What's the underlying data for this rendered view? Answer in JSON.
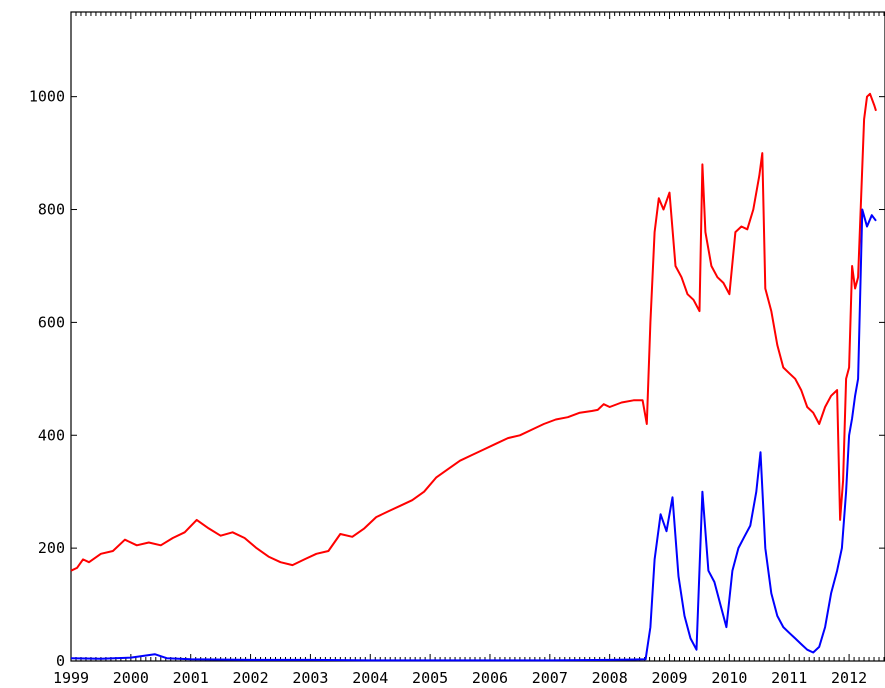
{
  "chart_data": {
    "type": "line",
    "title": "",
    "xlabel": "",
    "ylabel": "",
    "xlim": [
      1999.0,
      2012.6
    ],
    "ylim": [
      0,
      1150
    ],
    "grid": false,
    "legend": "none",
    "x_ticks": [
      "1999",
      "2000",
      "2001",
      "2002",
      "2003",
      "2004",
      "2005",
      "2006",
      "2007",
      "2008",
      "2009",
      "2010",
      "2011",
      "2012"
    ],
    "y_ticks": [
      "0",
      "200",
      "400",
      "600",
      "800",
      "1000"
    ],
    "y_tick_values": [
      0,
      200,
      400,
      600,
      800,
      1000
    ],
    "colors": {
      "series_1": "#ff0000",
      "series_2": "#0000ff"
    },
    "series": [
      {
        "color": "#ff0000",
        "points": [
          [
            1999.0,
            160
          ],
          [
            1999.1,
            165
          ],
          [
            1999.2,
            180
          ],
          [
            1999.3,
            175
          ],
          [
            1999.5,
            190
          ],
          [
            1999.7,
            195
          ],
          [
            1999.9,
            215
          ],
          [
            2000.1,
            205
          ],
          [
            2000.3,
            210
          ],
          [
            2000.5,
            205
          ],
          [
            2000.7,
            218
          ],
          [
            2000.9,
            228
          ],
          [
            2001.1,
            250
          ],
          [
            2001.3,
            235
          ],
          [
            2001.5,
            222
          ],
          [
            2001.7,
            228
          ],
          [
            2001.9,
            218
          ],
          [
            2002.1,
            200
          ],
          [
            2002.3,
            185
          ],
          [
            2002.5,
            175
          ],
          [
            2002.7,
            170
          ],
          [
            2002.9,
            180
          ],
          [
            2003.1,
            190
          ],
          [
            2003.3,
            195
          ],
          [
            2003.5,
            225
          ],
          [
            2003.7,
            220
          ],
          [
            2003.9,
            235
          ],
          [
            2004.1,
            255
          ],
          [
            2004.3,
            265
          ],
          [
            2004.5,
            275
          ],
          [
            2004.7,
            285
          ],
          [
            2004.9,
            300
          ],
          [
            2005.1,
            325
          ],
          [
            2005.3,
            340
          ],
          [
            2005.5,
            355
          ],
          [
            2005.7,
            365
          ],
          [
            2005.9,
            375
          ],
          [
            2006.1,
            385
          ],
          [
            2006.3,
            395
          ],
          [
            2006.5,
            400
          ],
          [
            2006.7,
            410
          ],
          [
            2006.9,
            420
          ],
          [
            2007.1,
            428
          ],
          [
            2007.3,
            432
          ],
          [
            2007.5,
            440
          ],
          [
            2007.7,
            443
          ],
          [
            2007.8,
            445
          ],
          [
            2007.9,
            455
          ],
          [
            2008.0,
            450
          ],
          [
            2008.2,
            458
          ],
          [
            2008.4,
            462
          ],
          [
            2008.55,
            462
          ],
          [
            2008.62,
            420
          ],
          [
            2008.68,
            600
          ],
          [
            2008.75,
            760
          ],
          [
            2008.82,
            820
          ],
          [
            2008.9,
            800
          ],
          [
            2009.0,
            830
          ],
          [
            2009.1,
            700
          ],
          [
            2009.2,
            680
          ],
          [
            2009.3,
            650
          ],
          [
            2009.4,
            640
          ],
          [
            2009.5,
            620
          ],
          [
            2009.55,
            880
          ],
          [
            2009.6,
            760
          ],
          [
            2009.7,
            700
          ],
          [
            2009.8,
            680
          ],
          [
            2009.9,
            670
          ],
          [
            2010.0,
            650
          ],
          [
            2010.1,
            760
          ],
          [
            2010.2,
            770
          ],
          [
            2010.3,
            765
          ],
          [
            2010.4,
            800
          ],
          [
            2010.5,
            860
          ],
          [
            2010.55,
            900
          ],
          [
            2010.6,
            660
          ],
          [
            2010.7,
            620
          ],
          [
            2010.8,
            560
          ],
          [
            2010.9,
            520
          ],
          [
            2011.0,
            510
          ],
          [
            2011.1,
            500
          ],
          [
            2011.2,
            480
          ],
          [
            2011.3,
            450
          ],
          [
            2011.4,
            440
          ],
          [
            2011.5,
            420
          ],
          [
            2011.6,
            450
          ],
          [
            2011.7,
            470
          ],
          [
            2011.8,
            480
          ],
          [
            2011.85,
            250
          ],
          [
            2011.9,
            320
          ],
          [
            2011.95,
            500
          ],
          [
            2012.0,
            520
          ],
          [
            2012.05,
            700
          ],
          [
            2012.1,
            660
          ],
          [
            2012.15,
            680
          ],
          [
            2012.2,
            820
          ],
          [
            2012.25,
            960
          ],
          [
            2012.3,
            1000
          ],
          [
            2012.35,
            1005
          ],
          [
            2012.42,
            985
          ],
          [
            2012.45,
            975
          ]
        ]
      },
      {
        "color": "#0000ff",
        "points": [
          [
            1999.0,
            5
          ],
          [
            1999.5,
            4
          ],
          [
            2000.0,
            6
          ],
          [
            2000.4,
            12
          ],
          [
            2000.6,
            5
          ],
          [
            2001.0,
            3
          ],
          [
            2002.0,
            2
          ],
          [
            2003.0,
            2
          ],
          [
            2004.0,
            1
          ],
          [
            2005.0,
            1
          ],
          [
            2006.0,
            1
          ],
          [
            2007.0,
            1
          ],
          [
            2008.0,
            2
          ],
          [
            2008.6,
            3
          ],
          [
            2008.68,
            60
          ],
          [
            2008.75,
            180
          ],
          [
            2008.85,
            260
          ],
          [
            2008.95,
            230
          ],
          [
            2009.05,
            290
          ],
          [
            2009.15,
            150
          ],
          [
            2009.25,
            80
          ],
          [
            2009.35,
            40
          ],
          [
            2009.45,
            20
          ],
          [
            2009.55,
            300
          ],
          [
            2009.65,
            160
          ],
          [
            2009.75,
            140
          ],
          [
            2009.85,
            100
          ],
          [
            2009.95,
            60
          ],
          [
            2010.05,
            160
          ],
          [
            2010.15,
            200
          ],
          [
            2010.25,
            220
          ],
          [
            2010.35,
            240
          ],
          [
            2010.45,
            300
          ],
          [
            2010.52,
            370
          ],
          [
            2010.6,
            200
          ],
          [
            2010.7,
            120
          ],
          [
            2010.8,
            80
          ],
          [
            2010.9,
            60
          ],
          [
            2011.0,
            50
          ],
          [
            2011.1,
            40
          ],
          [
            2011.2,
            30
          ],
          [
            2011.3,
            20
          ],
          [
            2011.4,
            15
          ],
          [
            2011.5,
            25
          ],
          [
            2011.6,
            60
          ],
          [
            2011.7,
            120
          ],
          [
            2011.8,
            160
          ],
          [
            2011.88,
            200
          ],
          [
            2011.95,
            300
          ],
          [
            2012.0,
            400
          ],
          [
            2012.05,
            430
          ],
          [
            2012.1,
            470
          ],
          [
            2012.15,
            500
          ],
          [
            2012.22,
            800
          ],
          [
            2012.3,
            770
          ],
          [
            2012.38,
            790
          ],
          [
            2012.45,
            780
          ]
        ]
      }
    ]
  }
}
